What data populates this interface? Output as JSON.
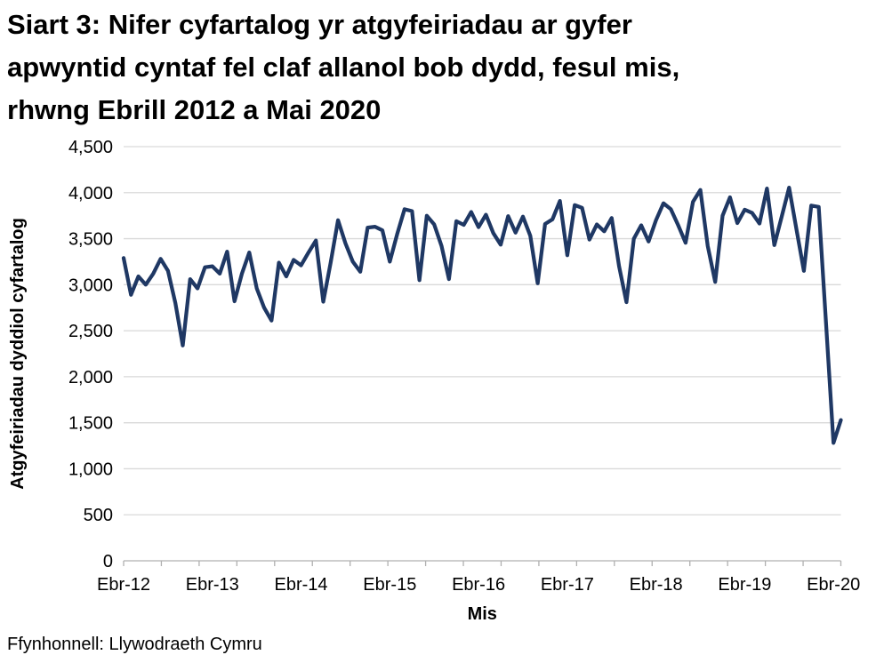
{
  "header": {
    "title_lines": [
      "Siart 3: Nifer cyfartalog yr atgyfeiriadau ar gyfer",
      "apwyntid cyntaf fel claf allanol bob dydd, fesul mis,",
      "rhwng Ebrill 2012 a Mai 2020"
    ]
  },
  "footer": {
    "source": "Ffynhonnell: Llywodraeth Cymru"
  },
  "chart_data": {
    "type": "line",
    "title": "Siart 3: Nifer cyfartalog yr atgyfeiriadau ar gyfer apwyntid cyntaf fel claf allanol bob dydd, fesul mis, rhwng Ebrill 2012 a Mai 2020",
    "xlabel": "Mis",
    "ylabel": "Atgyfeiriadau dyddiol cyfartalog",
    "x_start": "Ebrill 2012",
    "x_end": "Mai 2020",
    "frequency": "monthly",
    "x_tick_labels": [
      "Ebr-12",
      "Ebr-13",
      "Ebr-14",
      "Ebr-15",
      "Ebr-16",
      "Ebr-17",
      "Ebr-18",
      "Ebr-19",
      "Ebr-20"
    ],
    "y_ticks": [
      0,
      500,
      1000,
      1500,
      2000,
      2500,
      3000,
      3500,
      4000,
      4500
    ],
    "ylim": [
      0,
      4500
    ],
    "grid": "horizontal",
    "legend": "none",
    "line_color": "#1F3864",
    "gridline_color": "#D9D9D9",
    "axis_color": "#B0B0B0",
    "months": [
      "2012-04",
      "2012-05",
      "2012-06",
      "2012-07",
      "2012-08",
      "2012-09",
      "2012-10",
      "2012-11",
      "2012-12",
      "2013-01",
      "2013-02",
      "2013-03",
      "2013-04",
      "2013-05",
      "2013-06",
      "2013-07",
      "2013-08",
      "2013-09",
      "2013-10",
      "2013-11",
      "2013-12",
      "2014-01",
      "2014-02",
      "2014-03",
      "2014-04",
      "2014-05",
      "2014-06",
      "2014-07",
      "2014-08",
      "2014-09",
      "2014-10",
      "2014-11",
      "2014-12",
      "2015-01",
      "2015-02",
      "2015-03",
      "2015-04",
      "2015-05",
      "2015-06",
      "2015-07",
      "2015-08",
      "2015-09",
      "2015-10",
      "2015-11",
      "2015-12",
      "2016-01",
      "2016-02",
      "2016-03",
      "2016-04",
      "2016-05",
      "2016-06",
      "2016-07",
      "2016-08",
      "2016-09",
      "2016-10",
      "2016-11",
      "2016-12",
      "2017-01",
      "2017-02",
      "2017-03",
      "2017-04",
      "2017-05",
      "2017-06",
      "2017-07",
      "2017-08",
      "2017-09",
      "2017-10",
      "2017-11",
      "2017-12",
      "2018-01",
      "2018-02",
      "2018-03",
      "2018-04",
      "2018-05",
      "2018-06",
      "2018-07",
      "2018-08",
      "2018-09",
      "2018-10",
      "2018-11",
      "2018-12",
      "2019-01",
      "2019-02",
      "2019-03",
      "2019-04",
      "2019-05",
      "2019-06",
      "2019-07",
      "2019-08",
      "2019-09",
      "2019-10",
      "2019-11",
      "2019-12",
      "2020-01",
      "2020-02",
      "2020-03",
      "2020-04",
      "2020-05"
    ],
    "values": [
      3290,
      2890,
      3090,
      3000,
      3120,
      3280,
      3150,
      2800,
      2340,
      3060,
      2960,
      3190,
      3200,
      3120,
      3360,
      2820,
      3120,
      3350,
      2960,
      2750,
      2610,
      3240,
      3090,
      3270,
      3210,
      3350,
      3480,
      2815,
      3240,
      3700,
      3450,
      3250,
      3140,
      3620,
      3630,
      3590,
      3250,
      3550,
      3820,
      3800,
      3050,
      3750,
      3655,
      3420,
      3060,
      3690,
      3650,
      3790,
      3625,
      3760,
      3560,
      3435,
      3745,
      3565,
      3740,
      3530,
      3015,
      3660,
      3710,
      3910,
      3320,
      3865,
      3835,
      3490,
      3655,
      3580,
      3725,
      3200,
      2810,
      3500,
      3645,
      3470,
      3700,
      3885,
      3820,
      3645,
      3455,
      3900,
      4030,
      3420,
      3030,
      3750,
      3950,
      3670,
      3815,
      3780,
      3665,
      4045,
      3430,
      3740,
      4055,
      3600,
      3150,
      3860,
      3845,
      2570,
      1280,
      1530
    ]
  }
}
